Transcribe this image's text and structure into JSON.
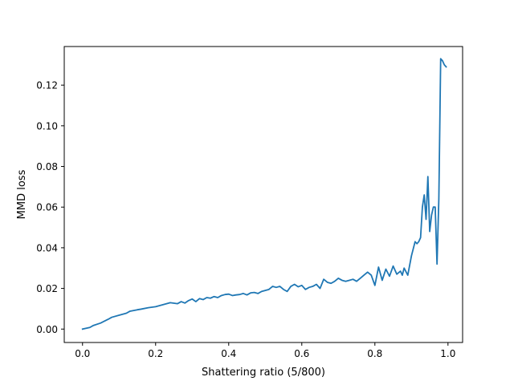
{
  "chart_data": {
    "type": "line",
    "title": "",
    "xlabel": "Shattering ratio (5/800)",
    "ylabel": "MMD loss",
    "xlim": [
      -0.05,
      1.04
    ],
    "ylim": [
      -0.0066,
      0.139
    ],
    "grid": false,
    "legend": "none",
    "line_color": "#1f77b4",
    "x_ticks": [
      0.0,
      0.2,
      0.4,
      0.6,
      0.8,
      1.0
    ],
    "x_tick_labels": [
      "0.0",
      "0.2",
      "0.4",
      "0.6",
      "0.8",
      "1.0"
    ],
    "y_ticks": [
      0.0,
      0.02,
      0.04,
      0.06,
      0.08,
      0.1,
      0.12
    ],
    "y_tick_labels": [
      "0.00",
      "0.02",
      "0.04",
      "0.06",
      "0.08",
      "0.10",
      "0.12"
    ],
    "series": [
      {
        "x": [
          0.0,
          0.02,
          0.03,
          0.05,
          0.07,
          0.08,
          0.1,
          0.12,
          0.13,
          0.15,
          0.16,
          0.18,
          0.2,
          0.22,
          0.24,
          0.26,
          0.27,
          0.28,
          0.29,
          0.3,
          0.31,
          0.32,
          0.33,
          0.34,
          0.35,
          0.36,
          0.37,
          0.38,
          0.39,
          0.4,
          0.41,
          0.42,
          0.43,
          0.44,
          0.45,
          0.46,
          0.47,
          0.48,
          0.49,
          0.5,
          0.51,
          0.52,
          0.53,
          0.54,
          0.55,
          0.56,
          0.57,
          0.58,
          0.59,
          0.6,
          0.61,
          0.62,
          0.63,
          0.64,
          0.65,
          0.66,
          0.67,
          0.68,
          0.69,
          0.7,
          0.71,
          0.72,
          0.73,
          0.74,
          0.75,
          0.76,
          0.77,
          0.78,
          0.79,
          0.8,
          0.81,
          0.82,
          0.83,
          0.84,
          0.85,
          0.86,
          0.87,
          0.875,
          0.88,
          0.89,
          0.9,
          0.91,
          0.915,
          0.92,
          0.925,
          0.93,
          0.935,
          0.94,
          0.945,
          0.95,
          0.955,
          0.96,
          0.965,
          0.97,
          0.975,
          0.98,
          0.985,
          0.99,
          0.995
        ],
        "y": [
          0.0,
          0.0008,
          0.0018,
          0.003,
          0.0048,
          0.0058,
          0.0068,
          0.0078,
          0.0088,
          0.0095,
          0.0098,
          0.0105,
          0.011,
          0.012,
          0.013,
          0.0125,
          0.0135,
          0.0128,
          0.014,
          0.0148,
          0.0135,
          0.015,
          0.0145,
          0.0155,
          0.0152,
          0.016,
          0.0155,
          0.0165,
          0.017,
          0.0172,
          0.0165,
          0.0168,
          0.017,
          0.0175,
          0.0168,
          0.0178,
          0.018,
          0.0175,
          0.0185,
          0.019,
          0.0195,
          0.021,
          0.0205,
          0.021,
          0.0195,
          0.0185,
          0.021,
          0.022,
          0.0208,
          0.0215,
          0.0195,
          0.0205,
          0.021,
          0.022,
          0.02,
          0.0245,
          0.023,
          0.0225,
          0.0235,
          0.025,
          0.024,
          0.0235,
          0.024,
          0.0245,
          0.0235,
          0.025,
          0.0265,
          0.028,
          0.0265,
          0.0215,
          0.0305,
          0.024,
          0.0295,
          0.026,
          0.031,
          0.027,
          0.0285,
          0.0265,
          0.03,
          0.0265,
          0.036,
          0.043,
          0.042,
          0.043,
          0.045,
          0.06,
          0.066,
          0.054,
          0.075,
          0.048,
          0.056,
          0.06,
          0.06,
          0.032,
          0.064,
          0.133,
          0.132,
          0.13,
          0.129
        ]
      }
    ]
  }
}
